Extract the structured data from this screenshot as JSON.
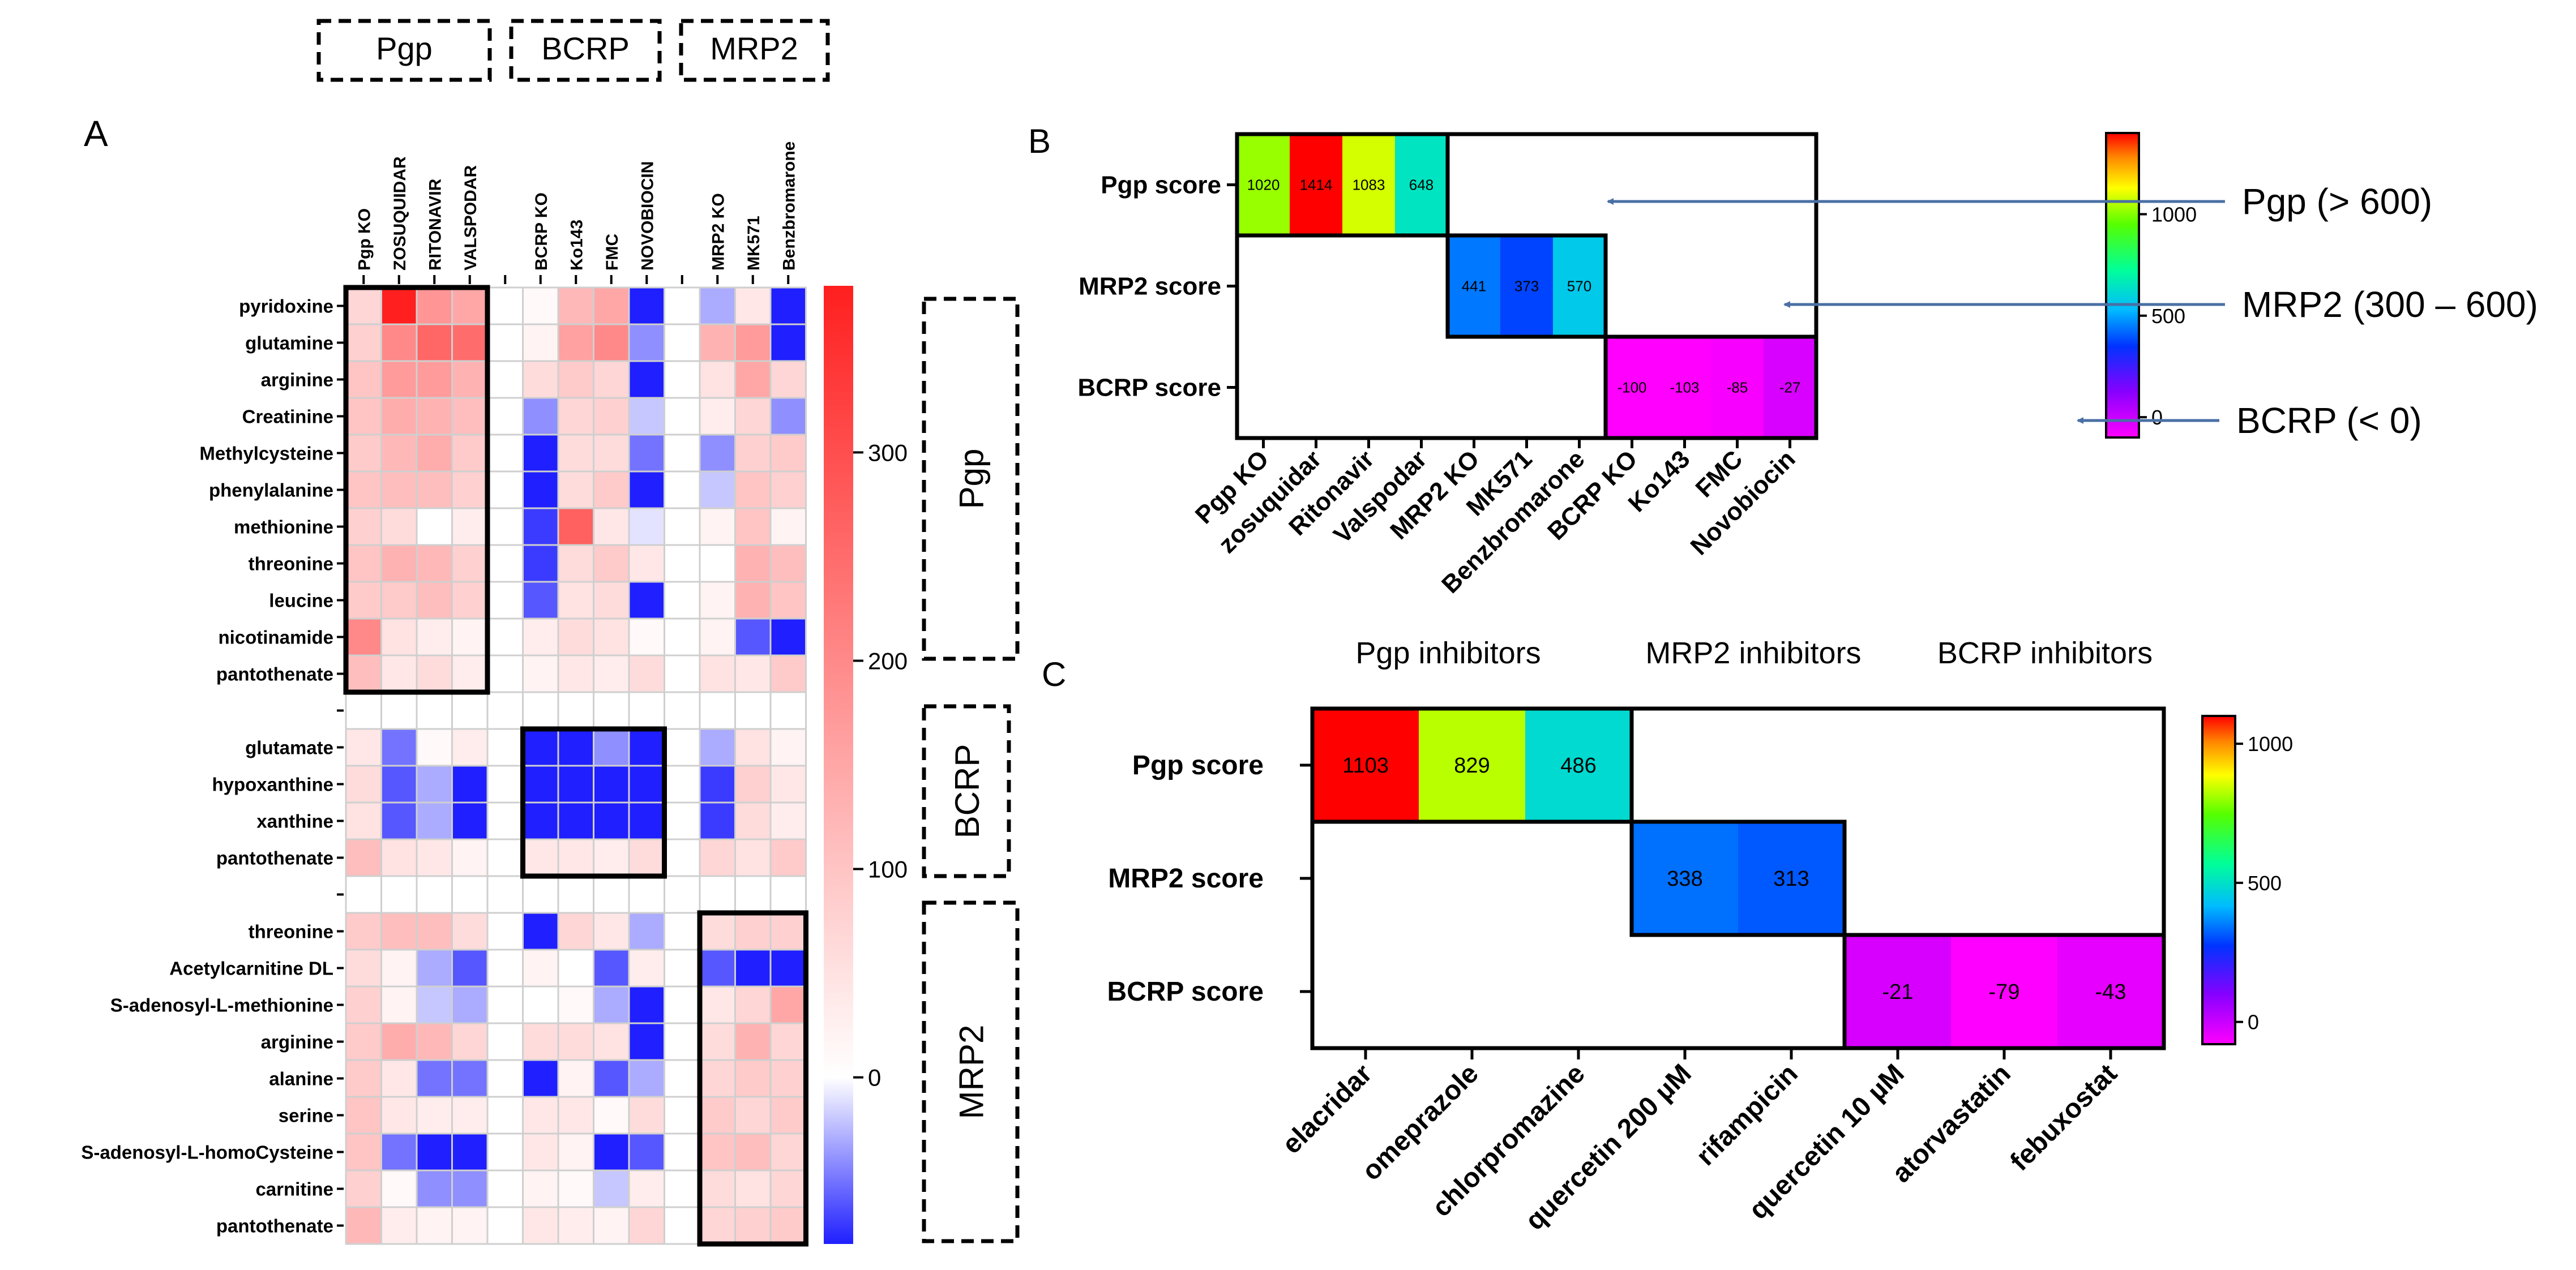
{
  "legend_boxes": [
    "Pgp",
    "BCRP",
    "MRP2"
  ],
  "chart_data": [
    {
      "panel": "A",
      "type": "heatmap",
      "columns": [
        "Pgp KO",
        "ZOSUQUIDAR",
        "RITONAVIR",
        "VALSPODAR",
        "",
        "BCRP KO",
        "Ko143",
        "FMC",
        "NOVOBIOCIN",
        "",
        "MRP2 KO",
        "MK571",
        "Benzbromarone"
      ],
      "rows": [
        "pyridoxine",
        "glutamine",
        "arginine",
        "Creatinine",
        "Methylcysteine",
        "phenylalanine",
        "methionine",
        "threonine",
        "leucine",
        "nicotinamide",
        "pantothenate",
        "",
        "glutamate",
        "hypoxanthine",
        "xanthine",
        "pantothenate",
        "",
        "threonine",
        "Acetylcarnitine DL",
        "S-adenosyl-L-methionine",
        "arginine",
        "alanine",
        "serine",
        "S-adenosyl-L-homoCysteine",
        "carnitine",
        "pantothenate"
      ],
      "values": [
        [
          70,
          380,
          180,
          150,
          null,
          10,
          120,
          150,
          -180,
          null,
          -30,
          40,
          -190
        ],
        [
          80,
          200,
          260,
          250,
          null,
          20,
          160,
          200,
          -40,
          null,
          130,
          170,
          -120
        ],
        [
          100,
          170,
          170,
          130,
          null,
          60,
          90,
          70,
          -110,
          null,
          50,
          150,
          70
        ],
        [
          100,
          140,
          130,
          110,
          null,
          -40,
          70,
          80,
          -20,
          null,
          30,
          70,
          -40
        ],
        [
          90,
          120,
          140,
          90,
          null,
          -110,
          60,
          60,
          -50,
          null,
          -40,
          80,
          90
        ],
        [
          100,
          110,
          110,
          80,
          null,
          -100,
          60,
          90,
          -130,
          null,
          -20,
          100,
          80
        ],
        [
          80,
          60,
          0,
          30,
          null,
          -70,
          270,
          40,
          -10,
          null,
          20,
          100,
          20
        ],
        [
          100,
          130,
          120,
          80,
          null,
          -70,
          60,
          90,
          40,
          null,
          0,
          130,
          110
        ],
        [
          90,
          90,
          110,
          80,
          null,
          -60,
          50,
          60,
          -140,
          null,
          20,
          130,
          100
        ],
        [
          200,
          50,
          30,
          20,
          null,
          30,
          60,
          50,
          10,
          null,
          20,
          -60,
          -110
        ],
        [
          110,
          40,
          60,
          30,
          null,
          20,
          40,
          30,
          60,
          null,
          50,
          40,
          90
        ],
        [
          null,
          null,
          null,
          null,
          null,
          null,
          null,
          null,
          null,
          null,
          null,
          null,
          null
        ],
        [
          40,
          -50,
          10,
          30,
          null,
          -160,
          -90,
          -40,
          -110,
          null,
          -30,
          50,
          20
        ],
        [
          60,
          -60,
          -30,
          -200,
          null,
          -190,
          -180,
          -190,
          -190,
          null,
          -70,
          80,
          40
        ],
        [
          50,
          -60,
          -30,
          -120,
          null,
          -180,
          -170,
          -200,
          -180,
          null,
          -70,
          60,
          30
        ],
        [
          110,
          50,
          40,
          20,
          null,
          40,
          40,
          30,
          60,
          null,
          70,
          50,
          90
        ],
        [
          null,
          null,
          null,
          null,
          null,
          null,
          null,
          null,
          null,
          null,
          null,
          null,
          null
        ],
        [
          90,
          110,
          110,
          60,
          null,
          -80,
          70,
          40,
          -30,
          null,
          60,
          80,
          80
        ],
        [
          60,
          20,
          -30,
          -60,
          null,
          20,
          0,
          -60,
          30,
          null,
          -60,
          -330,
          -360
        ],
        [
          80,
          20,
          -20,
          -30,
          null,
          0,
          10,
          -30,
          -200,
          null,
          40,
          70,
          150
        ],
        [
          90,
          140,
          120,
          70,
          null,
          60,
          60,
          50,
          -100,
          null,
          60,
          130,
          70
        ],
        [
          90,
          40,
          -50,
          -50,
          null,
          -140,
          20,
          -60,
          -30,
          null,
          70,
          90,
          80
        ],
        [
          100,
          40,
          30,
          30,
          null,
          40,
          40,
          10,
          60,
          null,
          90,
          70,
          90
        ],
        [
          100,
          -50,
          -170,
          -160,
          null,
          40,
          20,
          -110,
          -60,
          null,
          100,
          110,
          70
        ],
        [
          80,
          10,
          -40,
          -40,
          null,
          20,
          10,
          -20,
          30,
          null,
          60,
          50,
          70
        ],
        [
          120,
          30,
          20,
          20,
          null,
          40,
          30,
          20,
          70,
          null,
          70,
          80,
          90
        ]
      ],
      "colorbar_range": [
        -80,
        380
      ],
      "colorbar_ticks": [
        "0",
        "100",
        "200",
        "300"
      ],
      "group_labels": [
        "Pgp",
        "BCRP",
        "MRP2"
      ]
    },
    {
      "panel": "B",
      "type": "heatmap",
      "rows": [
        "Pgp score",
        "MRP2 score",
        "BCRP score"
      ],
      "columns": [
        "Pgp KO",
        "zosuquidar",
        "Ritonavir",
        "Valspodar",
        "MRP2 KO",
        "MK571",
        "Benzbromarone",
        "BCRP KO",
        "Ko143",
        "FMC",
        "Novobiocin"
      ],
      "values": [
        [
          1020,
          1414,
          1083,
          648,
          null,
          null,
          null,
          null,
          null,
          null,
          null
        ],
        [
          null,
          null,
          null,
          null,
          441,
          373,
          570,
          null,
          null,
          null,
          null
        ],
        [
          null,
          null,
          null,
          null,
          null,
          null,
          null,
          -100,
          -103,
          -85,
          -27
        ]
      ],
      "colorbar_range": [
        -100,
        1400
      ],
      "colorbar_ticks": [
        "0",
        "500",
        "1000"
      ],
      "annotations": [
        "Pgp (> 600)",
        "MRP2 (300 – 600)",
        "BCRP (< 0)"
      ]
    },
    {
      "panel": "C",
      "type": "heatmap",
      "group_headers": [
        "Pgp inhibitors",
        "MRP2 inhibitors",
        "BCRP inhibitors"
      ],
      "rows": [
        "Pgp score",
        "MRP2 score",
        "BCRP score"
      ],
      "columns": [
        "elacridar",
        "omeprazole",
        "chlorpromazine",
        "quercetin 200 µM",
        "rifampicin",
        "quercetin 10 µM",
        "atorvastatin",
        "febuxostat"
      ],
      "values": [
        [
          1103,
          829,
          486,
          null,
          null,
          null,
          null,
          null
        ],
        [
          null,
          null,
          null,
          338,
          313,
          null,
          null,
          null
        ],
        [
          null,
          null,
          null,
          null,
          null,
          -21,
          -79,
          -43
        ]
      ],
      "colorbar_range": [
        -80,
        1100
      ],
      "colorbar_ticks": [
        "0",
        "500",
        "1000"
      ]
    }
  ],
  "colors": {
    "ink": "#000000",
    "diverging_neg": "#1f1fff",
    "diverging_mid": "#ffffff",
    "diverging_pos": "#ff1f1f",
    "arrow": "#4a6fa5",
    "grid": "#cfcfcf"
  }
}
